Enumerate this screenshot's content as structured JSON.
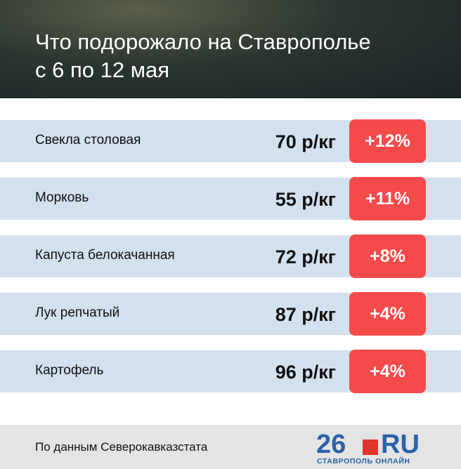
{
  "header": {
    "title": [
      "Что подорожало на Ставрополье",
      "с 6 по 12 мая"
    ]
  },
  "table": {
    "rows": [
      [
        "Свекла столовая",
        "70 р/кг",
        "+12%"
      ],
      [
        "Морковь",
        "55 р/кг",
        "+11%"
      ],
      [
        "Капуста белокачанная",
        "72 р/кг",
        "+8%"
      ],
      [
        "Лук репчатый",
        "87 р/кг",
        "+4%"
      ],
      [
        "Картофель",
        "96 р/кг",
        "+4%"
      ]
    ]
  },
  "footer": {
    "source": "По данным Северокавказстата",
    "logo": {
      "number": "26",
      "domain": "RU",
      "tagline": "СТАВРОПОЛЬ ОНЛАЙН"
    }
  }
}
